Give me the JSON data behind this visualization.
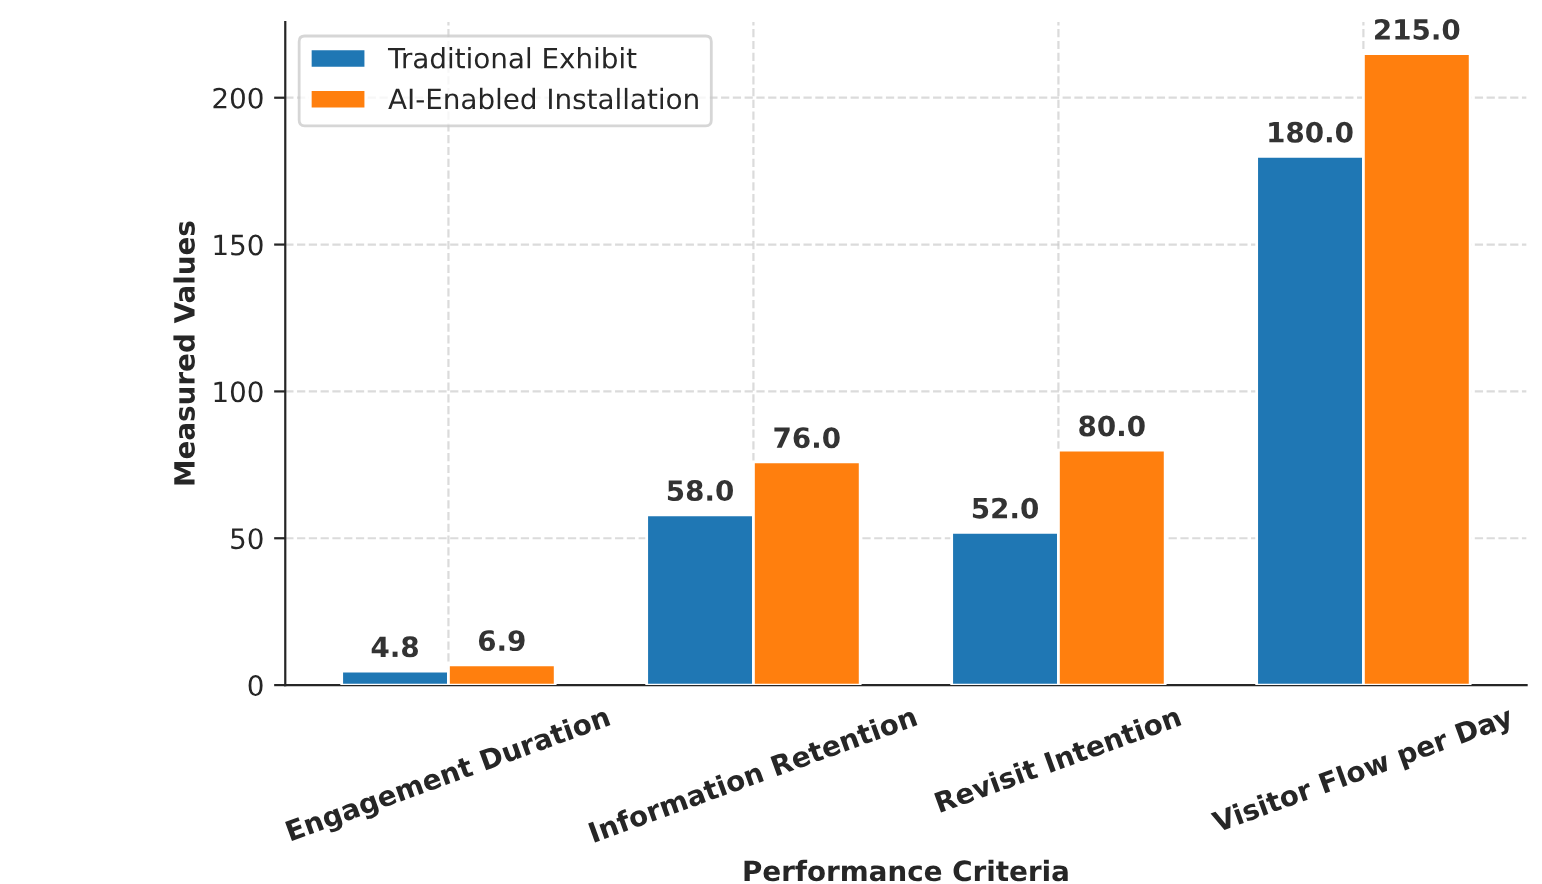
{
  "chart_data": {
    "type": "bar",
    "xlabel": "Performance Criteria",
    "ylabel": "Measured Values",
    "categories": [
      "Engagement Duration",
      "Information Retention",
      "Revisit Intention",
      "Visitor Flow per Day"
    ],
    "series": [
      {
        "name": "Traditional Exhibit",
        "color": "#1f77b4",
        "values": [
          4.8,
          58.0,
          52.0,
          180.0
        ],
        "value_labels": [
          "4.8",
          "58.0",
          "52.0",
          "180.0"
        ]
      },
      {
        "name": "AI-Enabled Installation",
        "color": "#ff7f0e",
        "values": [
          6.9,
          76.0,
          80.0,
          215.0
        ],
        "value_labels": [
          "6.9",
          "76.0",
          "80.0",
          "215.0"
        ]
      }
    ],
    "ylim": [
      0,
      225.75
    ],
    "yticks": [
      0,
      50,
      100,
      150,
      200
    ],
    "grid": true,
    "legend": "top left"
  }
}
